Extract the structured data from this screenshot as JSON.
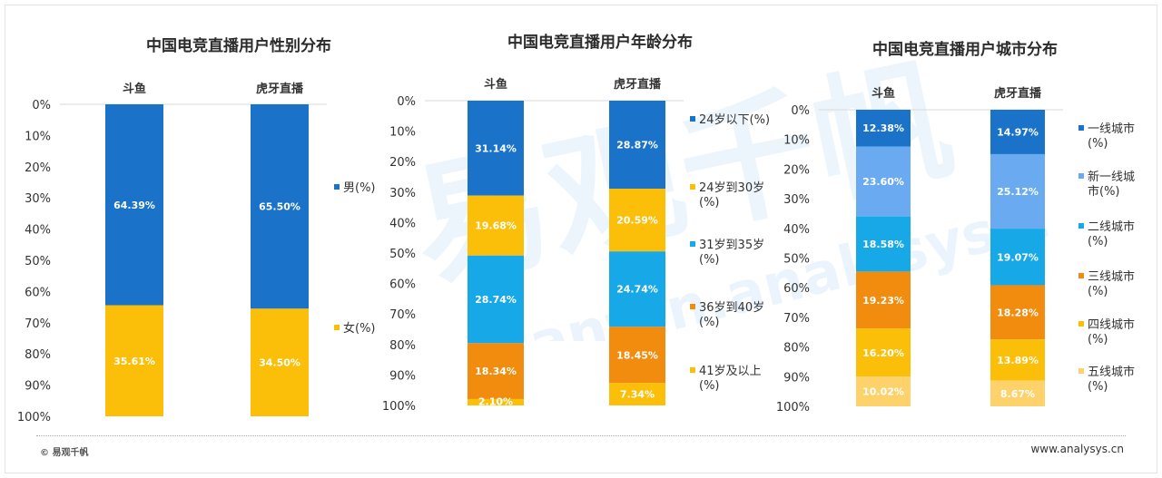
{
  "footer": {
    "copyright": "© 易观千帆",
    "url": "www.analysys.cn"
  },
  "watermark": {
    "cn": "易观千帆",
    "en": "Qianfan.analysys.cn"
  },
  "colors": {
    "blue": "#1a73c8",
    "light_blue": "#6aaaf0",
    "cyan": "#17a8e8",
    "orange": "#f28c0f",
    "gold": "#fbbf0a",
    "light_gold": "#fdd26a",
    "watermark": "#d8ebfa"
  },
  "chart_data": [
    {
      "type": "bar",
      "stacked": "100%",
      "title": "中国电竞直播用户性别分布",
      "categories": [
        "斗鱼",
        "虎牙直播"
      ],
      "yticks": [
        "0%",
        "10%",
        "20%",
        "30%",
        "40%",
        "50%",
        "60%",
        "70%",
        "80%",
        "90%",
        "100%"
      ],
      "ylim": [
        0,
        100
      ],
      "y_inverted": true,
      "legend_position": "right",
      "series": [
        {
          "name": "男(%)",
          "color": "#1a73c8",
          "values": [
            64.39,
            65.5
          ],
          "labels": [
            "64.39%",
            "65.50%"
          ]
        },
        {
          "name": "女(%)",
          "color": "#fbbf0a",
          "values": [
            35.61,
            34.5
          ],
          "labels": [
            "35.61%",
            "34.50%"
          ]
        }
      ]
    },
    {
      "type": "bar",
      "stacked": "100%",
      "title": "中国电竞直播用户年龄分布",
      "categories": [
        "斗鱼",
        "虎牙直播"
      ],
      "yticks": [
        "0%",
        "10%",
        "20%",
        "30%",
        "40%",
        "50%",
        "60%",
        "70%",
        "80%",
        "90%",
        "100%"
      ],
      "ylim": [
        0,
        100
      ],
      "y_inverted": true,
      "legend_position": "right",
      "series": [
        {
          "name": [
            "24岁以下(%)"
          ],
          "color": "#1a73c8",
          "values": [
            31.14,
            28.87
          ],
          "labels": [
            "31.14%",
            "28.87%"
          ]
        },
        {
          "name": [
            "24岁到30岁",
            "(%)"
          ],
          "color": "#fbbf0a",
          "values": [
            19.68,
            20.59
          ],
          "labels": [
            "19.68%",
            "20.59%"
          ]
        },
        {
          "name": [
            "31岁到35岁",
            "(%)"
          ],
          "color": "#17a8e8",
          "values": [
            28.74,
            24.74
          ],
          "labels": [
            "28.74%",
            "24.74%"
          ]
        },
        {
          "name": [
            "36岁到40岁",
            "(%)"
          ],
          "color": "#f28c0f",
          "values": [
            18.34,
            18.45
          ],
          "labels": [
            "18.34%",
            "18.45%"
          ]
        },
        {
          "name": [
            "41岁及以上",
            "(%)"
          ],
          "color": "#fbbf0a",
          "values": [
            2.1,
            7.34
          ],
          "labels": [
            "2.10%",
            "7.34%"
          ]
        }
      ]
    },
    {
      "type": "bar",
      "stacked": "100%",
      "title": "中国电竞直播用户城市分布",
      "categories": [
        "斗鱼",
        "虎牙直播"
      ],
      "yticks": [
        "0%",
        "10%",
        "20%",
        "30%",
        "40%",
        "50%",
        "60%",
        "70%",
        "80%",
        "90%",
        "100%"
      ],
      "ylim": [
        0,
        100
      ],
      "y_inverted": true,
      "legend_position": "right",
      "series": [
        {
          "name": [
            "一线城市",
            "(%)"
          ],
          "color": "#1a73c8",
          "values": [
            12.38,
            14.97
          ],
          "labels": [
            "12.38%",
            "14.97%"
          ]
        },
        {
          "name": [
            "新一线城",
            "市(%)"
          ],
          "color": "#6aaaf0",
          "values": [
            23.6,
            25.12
          ],
          "labels": [
            "23.60%",
            "25.12%"
          ]
        },
        {
          "name": [
            "二线城市",
            "(%)"
          ],
          "color": "#17a8e8",
          "values": [
            18.58,
            19.07
          ],
          "labels": [
            "18.58%",
            "19.07%"
          ]
        },
        {
          "name": [
            "三线城市",
            "(%)"
          ],
          "color": "#f28c0f",
          "values": [
            19.23,
            18.28
          ],
          "labels": [
            "19.23%",
            "18.28%"
          ]
        },
        {
          "name": [
            "四线城市",
            "(%)"
          ],
          "color": "#fbbf0a",
          "values": [
            16.2,
            13.89
          ],
          "labels": [
            "16.20%",
            "13.89%"
          ]
        },
        {
          "name": [
            "五线城市",
            "(%)"
          ],
          "color": "#fdd26a",
          "values": [
            10.02,
            8.67
          ],
          "labels": [
            "10.02%",
            "8.67%"
          ]
        }
      ]
    }
  ]
}
